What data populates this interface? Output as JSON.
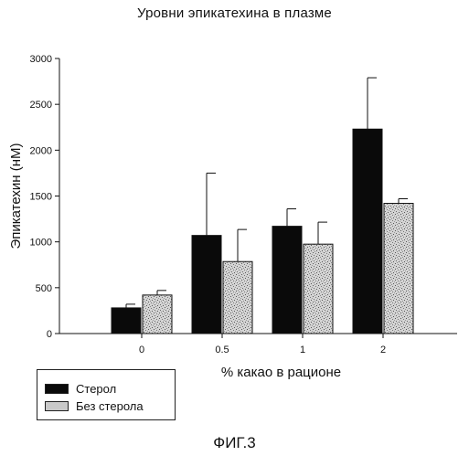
{
  "title": "Уровни эпикатехина в плазме",
  "figure_label": "ФИГ.3",
  "colors": {
    "sterol": "#0a0a0a",
    "no_sterol": "#c7c7c7"
  },
  "chart_data": {
    "type": "bar",
    "title": "Уровни эпикатехина в плазме",
    "xlabel": "% какао в рационе",
    "ylabel": "Эпикатехин (нМ)",
    "ylim": [
      0,
      3000
    ],
    "yticks": [
      0,
      500,
      1000,
      1500,
      2000,
      2500,
      3000
    ],
    "categories": [
      "0",
      "0.5",
      "1",
      "2"
    ],
    "series": [
      {
        "name": "Стерол",
        "values": [
          280,
          1070,
          1170,
          2230
        ],
        "errors": [
          40,
          680,
          190,
          560
        ]
      },
      {
        "name": "Без стерола",
        "values": [
          420,
          785,
          975,
          1420
        ],
        "errors": [
          50,
          350,
          240,
          50
        ]
      }
    ],
    "legend_position": "bottom-left"
  }
}
